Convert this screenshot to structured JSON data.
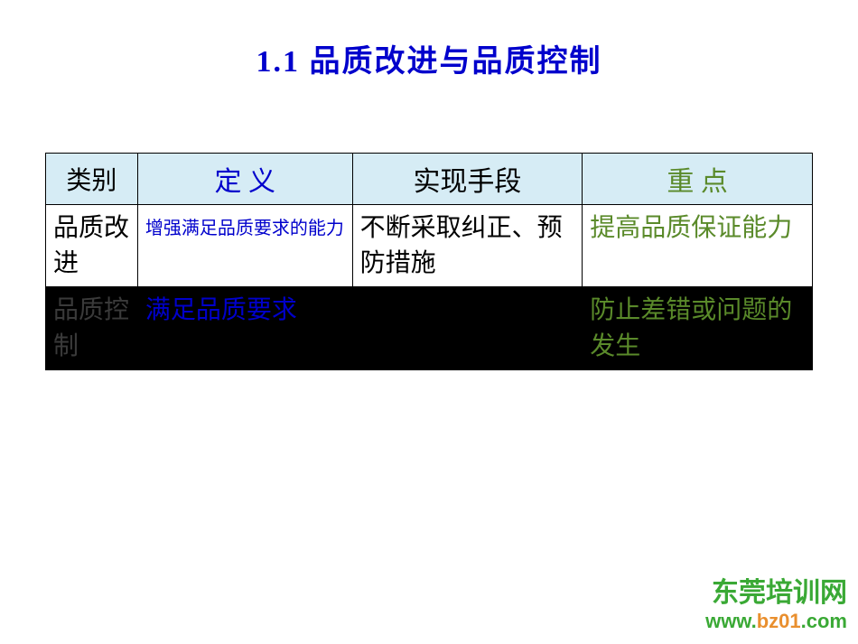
{
  "title": {
    "text": "1.1   品质改进与品质控制",
    "color": "#0000cc",
    "fontsize": 34
  },
  "table": {
    "header_bg": "#d6ecf5",
    "border_color": "#000000",
    "columns": [
      {
        "label": "类别",
        "width": "12%",
        "color": "#000000",
        "fontsize": 28
      },
      {
        "label": "定   义",
        "width": "28%",
        "color": "#0000cc",
        "fontsize": 30
      },
      {
        "label": "实现手段",
        "width": "30%",
        "color": "#000000",
        "fontsize": 30
      },
      {
        "label": "重   点",
        "width": "30%",
        "color": "#5a8a2a",
        "fontsize": 30
      }
    ],
    "rows": [
      {
        "bg": "#ffffff",
        "cells": [
          {
            "text": "品质改进",
            "color": "#000000",
            "fontsize": 28
          },
          {
            "text": "增强满足品质要求的能力",
            "color": "#0000cc",
            "fontsize": 20,
            "lineheight": 2.0
          },
          {
            "text": "不断采取纠正、预防措施",
            "color": "#000000",
            "fontsize": 28
          },
          {
            "text": "提高品质保证能力",
            "color": "#5a8a2a",
            "fontsize": 28
          }
        ]
      },
      {
        "bg": "#000000",
        "cells": [
          {
            "text": "品质控制",
            "color": "#3a3a3a",
            "fontsize": 28
          },
          {
            "text": "满足品质要求",
            "color": "#0000cc",
            "fontsize": 28
          },
          {
            "text": "",
            "color": "#000000",
            "fontsize": 28
          },
          {
            "text": "防止差错或问题的发生",
            "color": "#5a8a2a",
            "fontsize": 28
          }
        ]
      }
    ]
  },
  "footer": {
    "cn": {
      "text": "东莞培训网",
      "color": "#3aa935",
      "fontsize": 30
    },
    "url": {
      "prefix": "www.",
      "mid": "bz01",
      "suffix": ".com",
      "color_outer": "#3aa935",
      "color_mid": "#e98f2e",
      "fontsize": 22
    }
  }
}
